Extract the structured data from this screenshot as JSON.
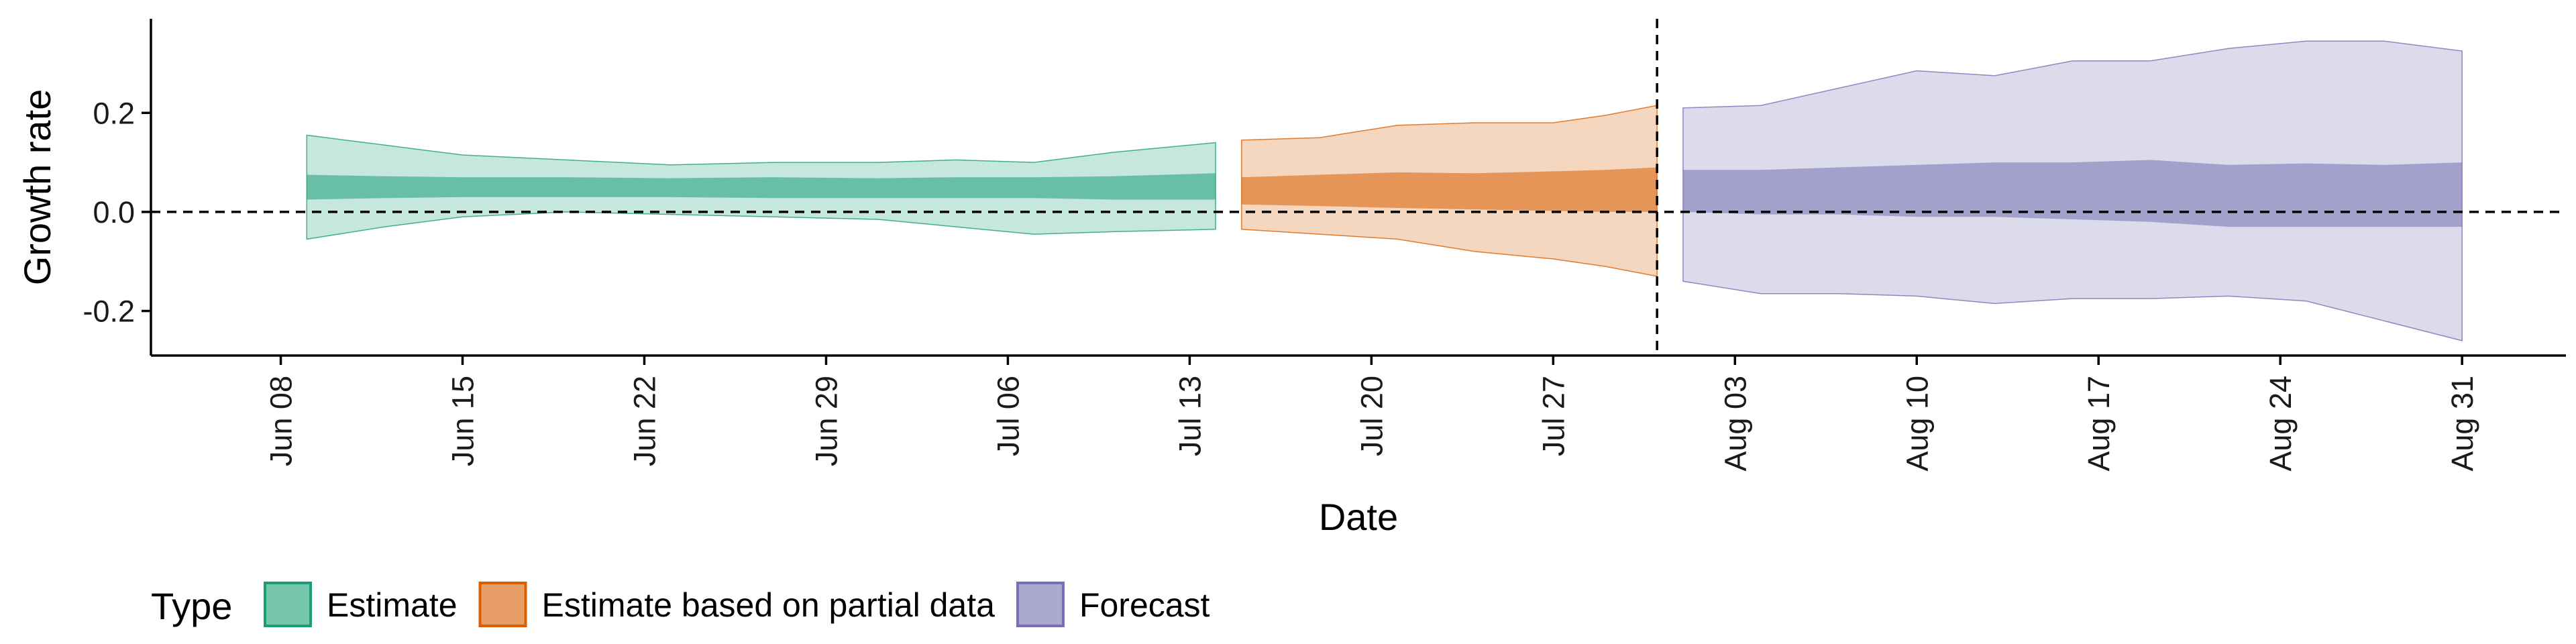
{
  "chart_data": {
    "type": "area",
    "xlabel": "Date",
    "ylabel": "Growth rate",
    "ylim": [
      -0.29,
      0.39
    ],
    "y_ticks": [
      -0.2,
      0.0,
      0.2
    ],
    "y_tick_labels": [
      "-0.2",
      "0.0",
      "0.2"
    ],
    "x_range": [
      "2020-06-03",
      "2020-09-04"
    ],
    "x_ticks": [
      "2020-06-08",
      "2020-06-15",
      "2020-06-22",
      "2020-06-29",
      "2020-07-06",
      "2020-07-13",
      "2020-07-20",
      "2020-07-27",
      "2020-08-03",
      "2020-08-10",
      "2020-08-17",
      "2020-08-24",
      "2020-08-31"
    ],
    "x_tick_labels": [
      "Jun 08",
      "Jun 15",
      "Jun 22",
      "Jun 29",
      "Jul 06",
      "Jul 13",
      "Jul 20",
      "Jul 27",
      "Aug 03",
      "Aug 10",
      "Aug 17",
      "Aug 24",
      "Aug 31"
    ],
    "hline_y": 0.0,
    "vline_x": "2020-07-31",
    "grid": false,
    "legend": {
      "title": "Type",
      "position": "bottom",
      "items": [
        "Estimate",
        "Estimate based on partial data",
        "Forecast"
      ]
    },
    "series": [
      {
        "name": "Estimate",
        "color": "#1B9E77",
        "x": [
          "2020-06-09",
          "2020-06-12",
          "2020-06-15",
          "2020-06-19",
          "2020-06-23",
          "2020-06-27",
          "2020-07-01",
          "2020-07-04",
          "2020-07-07",
          "2020-07-10",
          "2020-07-14"
        ],
        "outer_upper": [
          0.155,
          0.135,
          0.115,
          0.105,
          0.095,
          0.1,
          0.1,
          0.105,
          0.1,
          0.12,
          0.14
        ],
        "inner_upper": [
          0.075,
          0.072,
          0.07,
          0.07,
          0.068,
          0.07,
          0.068,
          0.07,
          0.07,
          0.072,
          0.078
        ],
        "inner_lower": [
          0.025,
          0.028,
          0.03,
          0.03,
          0.03,
          0.028,
          0.028,
          0.028,
          0.028,
          0.025,
          0.025
        ],
        "outer_lower": [
          -0.055,
          -0.03,
          -0.01,
          0.0,
          -0.005,
          -0.01,
          -0.015,
          -0.03,
          -0.045,
          -0.04,
          -0.035
        ]
      },
      {
        "name": "Estimate based on partial data",
        "color": "#D95F02",
        "x": [
          "2020-07-15",
          "2020-07-18",
          "2020-07-21",
          "2020-07-24",
          "2020-07-27",
          "2020-07-29",
          "2020-07-31"
        ],
        "outer_upper": [
          0.145,
          0.15,
          0.175,
          0.18,
          0.18,
          0.195,
          0.215
        ],
        "inner_upper": [
          0.07,
          0.075,
          0.08,
          0.078,
          0.082,
          0.085,
          0.09
        ],
        "inner_lower": [
          0.015,
          0.012,
          0.008,
          0.005,
          0.002,
          0.0,
          0.0
        ],
        "outer_lower": [
          -0.035,
          -0.045,
          -0.055,
          -0.08,
          -0.095,
          -0.11,
          -0.13
        ]
      },
      {
        "name": "Forecast",
        "color": "#7570B3",
        "x": [
          "2020-08-01",
          "2020-08-04",
          "2020-08-07",
          "2020-08-10",
          "2020-08-13",
          "2020-08-16",
          "2020-08-19",
          "2020-08-22",
          "2020-08-25",
          "2020-08-28",
          "2020-08-31"
        ],
        "outer_upper": [
          0.21,
          0.215,
          0.25,
          0.285,
          0.275,
          0.305,
          0.305,
          0.33,
          0.345,
          0.345,
          0.325
        ],
        "inner_upper": [
          0.085,
          0.085,
          0.09,
          0.095,
          0.1,
          0.1,
          0.105,
          0.095,
          0.098,
          0.095,
          0.1
        ],
        "inner_lower": [
          0.0,
          -0.005,
          -0.005,
          -0.01,
          -0.01,
          -0.015,
          -0.02,
          -0.03,
          -0.03,
          -0.03,
          -0.03
        ],
        "outer_lower": [
          -0.14,
          -0.165,
          -0.165,
          -0.17,
          -0.185,
          -0.175,
          -0.175,
          -0.17,
          -0.18,
          -0.22,
          -0.26
        ]
      }
    ]
  }
}
